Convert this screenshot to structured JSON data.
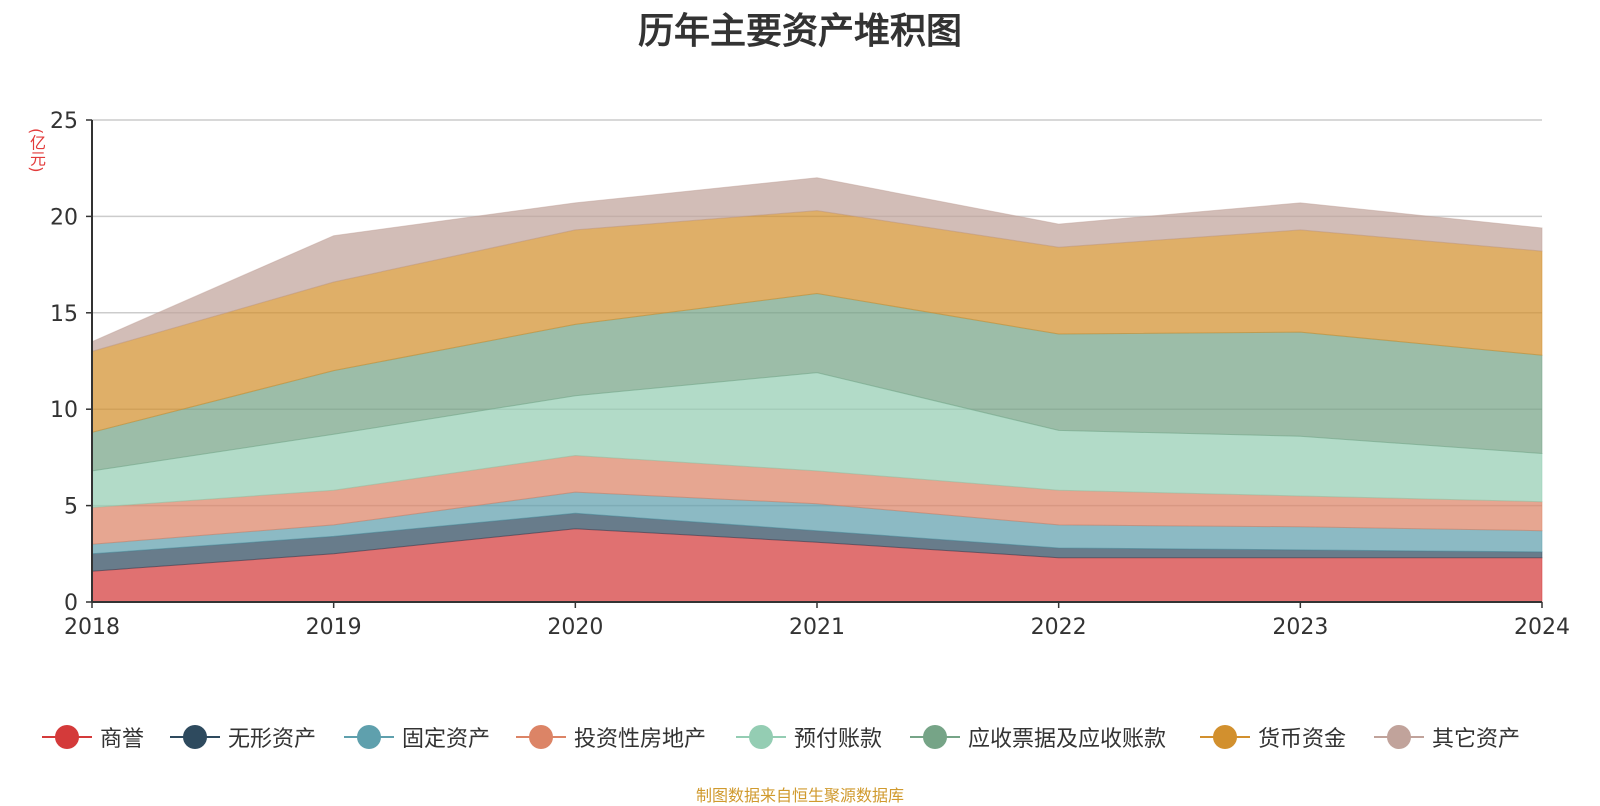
{
  "title": "历年主要资产堆积图",
  "unit_label": "(亿元)",
  "source_note": "制图数据来自恒生聚源数据库",
  "chart_data": {
    "type": "area",
    "stacked": true,
    "title": "历年主要资产堆积图",
    "ylabel": "(亿元)",
    "x": [
      "2018",
      "2019",
      "2020",
      "2021",
      "2022",
      "2023",
      "2024"
    ],
    "ylim": [
      0,
      25
    ],
    "yticks": [
      "0",
      "5",
      "10",
      "15",
      "20",
      "25"
    ],
    "grid": true,
    "legend_position": "bottom",
    "series": [
      {
        "name": "商誉",
        "color": "#d43a3a",
        "values": [
          1.6,
          2.5,
          3.8,
          3.1,
          2.3,
          2.3,
          2.3
        ]
      },
      {
        "name": "无形资产",
        "color": "#2e4a5e",
        "values": [
          0.9,
          0.9,
          0.8,
          0.6,
          0.5,
          0.4,
          0.3
        ]
      },
      {
        "name": "固定资产",
        "color": "#5fa0ad",
        "values": [
          0.5,
          0.6,
          1.1,
          1.4,
          1.2,
          1.2,
          1.1
        ]
      },
      {
        "name": "投资性房地产",
        "color": "#dc8466",
        "values": [
          1.9,
          1.8,
          1.9,
          1.7,
          1.8,
          1.6,
          1.5
        ]
      },
      {
        "name": "预付账款",
        "color": "#94cdb3",
        "values": [
          1.9,
          2.9,
          3.1,
          5.1,
          3.1,
          3.1,
          2.5
        ]
      },
      {
        "name": "应收票据及应收账款",
        "color": "#76a487",
        "values": [
          2.0,
          3.3,
          3.7,
          4.1,
          5.0,
          5.4,
          5.1
        ]
      },
      {
        "name": "货币资金",
        "color": "#d2902e",
        "values": [
          4.2,
          4.6,
          4.9,
          4.3,
          4.5,
          5.3,
          5.4
        ]
      },
      {
        "name": "其它资产",
        "color": "#c1a39b",
        "values": [
          0.5,
          2.4,
          1.4,
          1.7,
          1.2,
          1.4,
          1.2
        ]
      }
    ]
  }
}
